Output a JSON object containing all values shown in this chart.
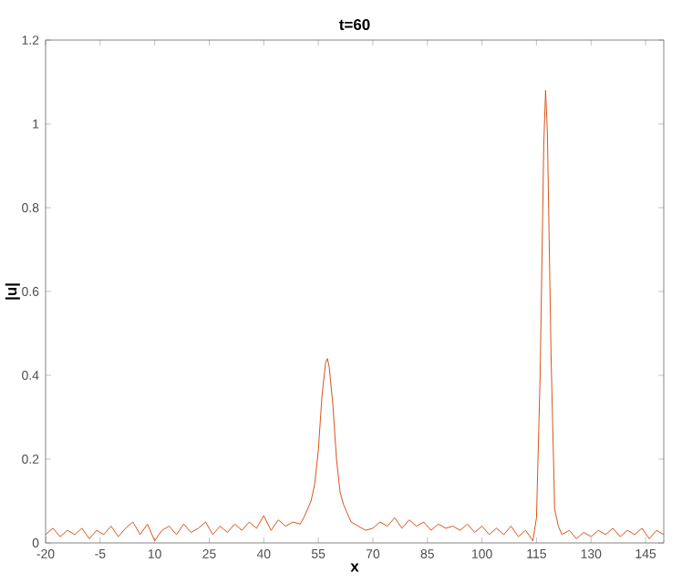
{
  "chart_data": {
    "type": "line",
    "title": "t=60",
    "xlabel": "x",
    "ylabel": "|u|",
    "xlim": [
      -20,
      150
    ],
    "ylim": [
      0,
      1.2
    ],
    "xticks": [
      -20,
      -5,
      10,
      25,
      40,
      55,
      70,
      85,
      100,
      115,
      130,
      145
    ],
    "yticks": [
      0,
      0.2,
      0.4,
      0.6,
      0.8,
      1,
      1.2
    ],
    "series": [
      {
        "color": "#d95319",
        "x": [
          -20,
          -18,
          -16,
          -14,
          -12,
          -10,
          -8,
          -6,
          -4,
          -2,
          0,
          2,
          4,
          6,
          8,
          10,
          12,
          14,
          16,
          18,
          20,
          22,
          24,
          26,
          28,
          30,
          32,
          34,
          36,
          38,
          40,
          42,
          44,
          46,
          48,
          50,
          51,
          52,
          53,
          54,
          55,
          56,
          57,
          57.5,
          58,
          59,
          60,
          61,
          62,
          63,
          64,
          66,
          68,
          70,
          72,
          74,
          76,
          78,
          80,
          82,
          84,
          86,
          88,
          90,
          92,
          94,
          96,
          98,
          100,
          102,
          104,
          106,
          108,
          110,
          112,
          114,
          115,
          116,
          117,
          117.5,
          118,
          119,
          120,
          121,
          122,
          124,
          126,
          128,
          130,
          132,
          134,
          136,
          138,
          140,
          142,
          144,
          146,
          148,
          150
        ],
        "values": [
          0.02,
          0.035,
          0.015,
          0.03,
          0.02,
          0.035,
          0.01,
          0.03,
          0.02,
          0.04,
          0.015,
          0.035,
          0.05,
          0.02,
          0.045,
          0.005,
          0.03,
          0.04,
          0.02,
          0.045,
          0.025,
          0.035,
          0.05,
          0.02,
          0.04,
          0.025,
          0.045,
          0.03,
          0.05,
          0.035,
          0.065,
          0.03,
          0.055,
          0.04,
          0.05,
          0.045,
          0.06,
          0.08,
          0.1,
          0.14,
          0.22,
          0.35,
          0.43,
          0.44,
          0.42,
          0.33,
          0.2,
          0.12,
          0.09,
          0.07,
          0.05,
          0.04,
          0.03,
          0.035,
          0.05,
          0.04,
          0.06,
          0.035,
          0.055,
          0.04,
          0.05,
          0.03,
          0.045,
          0.035,
          0.04,
          0.03,
          0.045,
          0.025,
          0.04,
          0.02,
          0.035,
          0.02,
          0.04,
          0.015,
          0.03,
          0.005,
          0.06,
          0.4,
          0.95,
          1.08,
          0.98,
          0.45,
          0.08,
          0.04,
          0.02,
          0.03,
          0.01,
          0.025,
          0.015,
          0.03,
          0.02,
          0.035,
          0.015,
          0.03,
          0.02,
          0.035,
          0.01,
          0.03,
          0.02
        ]
      }
    ]
  }
}
